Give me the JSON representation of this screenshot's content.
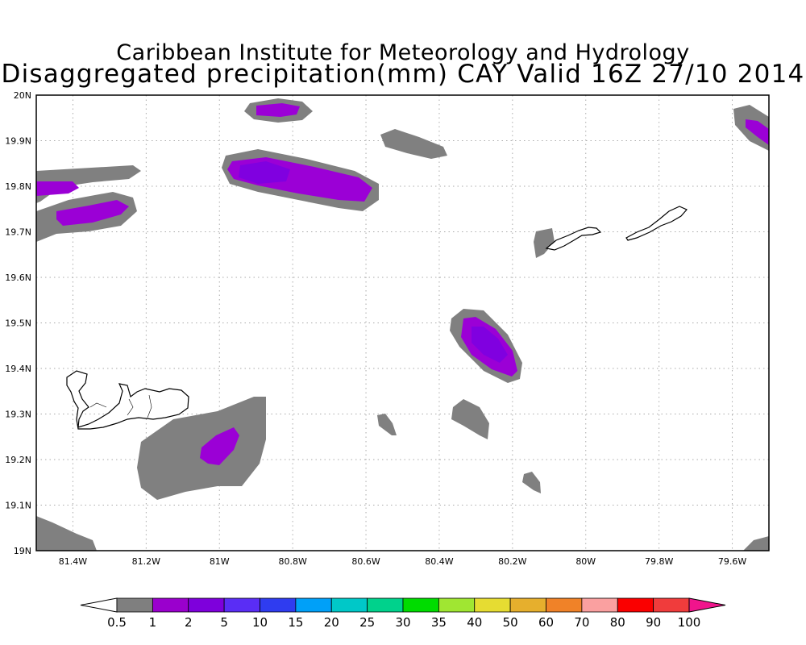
{
  "title": {
    "line1": "Caribbean Institute for Meteorology and Hydrology",
    "line2": "Disaggregated precipitation(mm) CAY Valid 16Z 27/10 2014"
  },
  "map": {
    "lon_range": [
      -81.5,
      -79.5
    ],
    "lat_range": [
      19.0,
      20.0
    ],
    "grid": "dotted",
    "x_ticks": [
      {
        "value": -81.4,
        "label": "81.4W"
      },
      {
        "value": -81.2,
        "label": "81.2W"
      },
      {
        "value": -81.0,
        "label": "81W"
      },
      {
        "value": -80.8,
        "label": "80.8W"
      },
      {
        "value": -80.6,
        "label": "80.6W"
      },
      {
        "value": -80.4,
        "label": "80.4W"
      },
      {
        "value": -80.2,
        "label": "80.2W"
      },
      {
        "value": -80.0,
        "label": "80W"
      },
      {
        "value": -79.8,
        "label": "79.8W"
      },
      {
        "value": -79.6,
        "label": "79.6W"
      }
    ],
    "y_ticks": [
      {
        "value": 20.0,
        "label": "20N"
      },
      {
        "value": 19.9,
        "label": "19.9N"
      },
      {
        "value": 19.8,
        "label": "19.8N"
      },
      {
        "value": 19.7,
        "label": "19.7N"
      },
      {
        "value": 19.6,
        "label": "19.6N"
      },
      {
        "value": 19.5,
        "label": "19.5N"
      },
      {
        "value": 19.4,
        "label": "19.4N"
      },
      {
        "value": 19.3,
        "label": "19.3N"
      },
      {
        "value": 19.2,
        "label": "19.2N"
      },
      {
        "value": 19.1,
        "label": "19.1N"
      },
      {
        "value": 19.0,
        "label": "19N"
      }
    ],
    "colors": {
      "gray": "#808080",
      "purple": "#9b00d6",
      "violet": "#8000e0"
    }
  },
  "colorbar": {
    "labels": [
      "0.5",
      "1",
      "2",
      "5",
      "10",
      "15",
      "20",
      "25",
      "30",
      "35",
      "40",
      "50",
      "60",
      "70",
      "80",
      "90",
      "100"
    ],
    "colors": [
      "#7f7f7f",
      "#9a00cd",
      "#7e00dc",
      "#5a2df5",
      "#2f3cf0",
      "#00a0f8",
      "#00c8c8",
      "#00d28c",
      "#00dc00",
      "#a0e632",
      "#e6dc32",
      "#e6af2d",
      "#f08228",
      "#faa0a0",
      "#fa0000",
      "#f03c3c",
      "#f0148c"
    ]
  }
}
